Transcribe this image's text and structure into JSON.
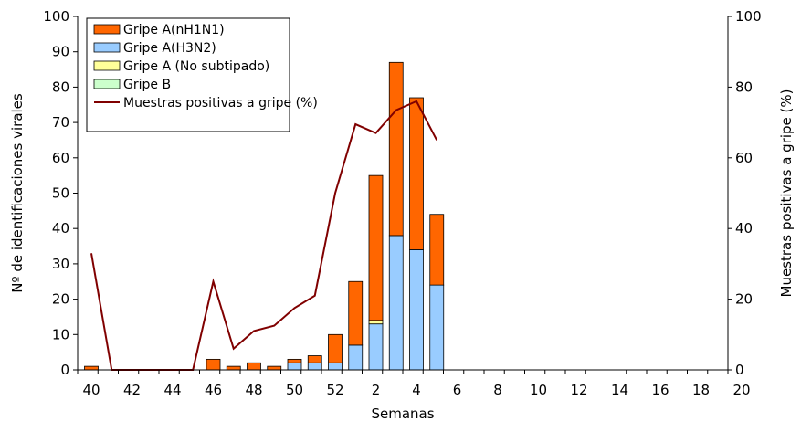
{
  "chart_data": {
    "type": "bar",
    "xlabel": "Semanas",
    "ylabel": "Nº de identificaciones virales",
    "y2label": "Muestras positivas a gripe (%)",
    "ylim": [
      0,
      100
    ],
    "y2lim": [
      0,
      100
    ],
    "yticks": [
      0,
      10,
      20,
      30,
      40,
      50,
      60,
      70,
      80,
      90,
      100
    ],
    "y2ticks": [
      0,
      20,
      40,
      60,
      80,
      100
    ],
    "categories": [
      "40",
      "41",
      "42",
      "43",
      "44",
      "45",
      "46",
      "47",
      "48",
      "49",
      "50",
      "51",
      "52",
      "1",
      "2",
      "3",
      "4",
      "5",
      "6",
      "7",
      "8",
      "9",
      "10",
      "11",
      "12",
      "13",
      "14",
      "15",
      "16",
      "17",
      "18",
      "19",
      "20"
    ],
    "xtick_labels": [
      "40",
      "",
      "42",
      "",
      "44",
      "",
      "46",
      "",
      "48",
      "",
      "50",
      "",
      "52",
      "",
      "2",
      "",
      "4",
      "",
      "6",
      "",
      "8",
      "",
      "10",
      "",
      "12",
      "",
      "14",
      "",
      "16",
      "",
      "18",
      "",
      "20"
    ],
    "stacked": true,
    "legend_position": "top-left",
    "series": [
      {
        "name": "Gripe A(nH1N1)",
        "type": "bar",
        "color": "#ff6600",
        "values": [
          1,
          0,
          0,
          0,
          0,
          0,
          3,
          1,
          2,
          1,
          1,
          2,
          8,
          18,
          41,
          49,
          43,
          20,
          0,
          0,
          0,
          0,
          0,
          0,
          0,
          0,
          0,
          0,
          0,
          0,
          0,
          0,
          0
        ]
      },
      {
        "name": "Gripe A(H3N2)",
        "type": "bar",
        "color": "#99ccff",
        "values": [
          0,
          0,
          0,
          0,
          0,
          0,
          0,
          0,
          0,
          0,
          2,
          2,
          2,
          7,
          13,
          38,
          34,
          24,
          0,
          0,
          0,
          0,
          0,
          0,
          0,
          0,
          0,
          0,
          0,
          0,
          0,
          0,
          0
        ]
      },
      {
        "name": "Gripe A (No subtipado)",
        "type": "bar",
        "color": "#ffff99",
        "values": [
          0,
          0,
          0,
          0,
          0,
          0,
          0,
          0,
          0,
          0,
          0,
          0,
          0,
          0,
          1,
          0,
          0,
          0,
          0,
          0,
          0,
          0,
          0,
          0,
          0,
          0,
          0,
          0,
          0,
          0,
          0,
          0,
          0
        ]
      },
      {
        "name": "Gripe B",
        "type": "bar",
        "color": "#ccffcc",
        "values": [
          0,
          0,
          0,
          0,
          0,
          0,
          0,
          0,
          0,
          0,
          0,
          0,
          0,
          0,
          0,
          0,
          0,
          0,
          0,
          0,
          0,
          0,
          0,
          0,
          0,
          0,
          0,
          0,
          0,
          0,
          0,
          0,
          0
        ]
      },
      {
        "name": "Muestras positivas a gripe (%)",
        "type": "line",
        "axis": "right",
        "color": "#800000",
        "values": [
          33,
          0,
          0,
          0,
          0,
          0,
          25,
          6,
          11,
          12.5,
          17.5,
          21,
          50,
          69.5,
          67,
          73.5,
          76,
          65,
          null,
          null,
          null,
          null,
          null,
          null,
          null,
          null,
          null,
          null,
          null,
          null,
          null,
          null,
          null
        ]
      }
    ]
  }
}
